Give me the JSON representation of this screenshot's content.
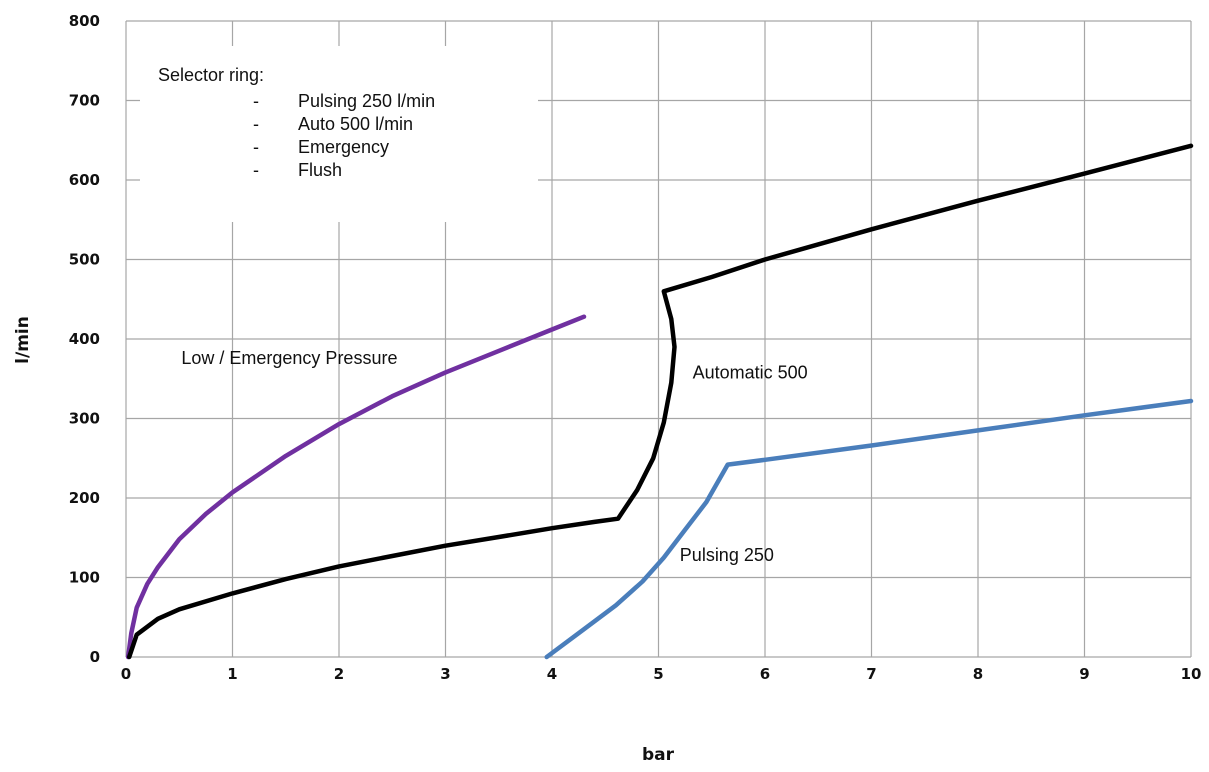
{
  "chart_data": {
    "type": "line",
    "xlabel": "bar",
    "ylabel": "l/min",
    "xlim": [
      0,
      10
    ],
    "ylim": [
      0,
      800
    ],
    "x_ticks": [
      "0",
      "1",
      "2",
      "3",
      "4",
      "5",
      "6",
      "7",
      "8",
      "9",
      "10"
    ],
    "y_ticks": [
      "0",
      "100",
      "200",
      "300",
      "400",
      "500",
      "600",
      "700",
      "800"
    ],
    "grid": true,
    "series": [
      {
        "name": "Low / Emergency Pressure",
        "color": "#7030a0",
        "points": [
          [
            0.02,
            0
          ],
          [
            0.05,
            30
          ],
          [
            0.1,
            62
          ],
          [
            0.2,
            92
          ],
          [
            0.3,
            113
          ],
          [
            0.5,
            148
          ],
          [
            0.75,
            180
          ],
          [
            1.0,
            207
          ],
          [
            1.5,
            253
          ],
          [
            2.0,
            293
          ],
          [
            2.5,
            328
          ],
          [
            3.0,
            358
          ],
          [
            3.5,
            385
          ],
          [
            4.0,
            412
          ],
          [
            4.3,
            428
          ]
        ]
      },
      {
        "name": "Automatic 500",
        "color": "#000000",
        "points": [
          [
            0.03,
            0
          ],
          [
            0.1,
            28
          ],
          [
            0.3,
            48
          ],
          [
            0.5,
            60
          ],
          [
            1.0,
            80
          ],
          [
            1.5,
            98
          ],
          [
            2.0,
            114
          ],
          [
            2.5,
            127
          ],
          [
            3.0,
            140
          ],
          [
            3.5,
            151
          ],
          [
            4.0,
            162
          ],
          [
            4.4,
            170
          ],
          [
            4.62,
            174
          ],
          [
            4.8,
            210
          ],
          [
            4.95,
            250
          ],
          [
            5.05,
            295
          ],
          [
            5.12,
            345
          ],
          [
            5.15,
            390
          ],
          [
            5.12,
            425
          ],
          [
            5.05,
            460
          ],
          [
            5.5,
            478
          ],
          [
            6.0,
            500
          ],
          [
            7.0,
            538
          ],
          [
            8.0,
            574
          ],
          [
            9.0,
            608
          ],
          [
            10.0,
            643
          ]
        ]
      },
      {
        "name": "Pulsing 250",
        "color": "#4a7ebb",
        "points": [
          [
            3.95,
            0
          ],
          [
            4.3,
            35
          ],
          [
            4.6,
            65
          ],
          [
            4.85,
            95
          ],
          [
            5.05,
            125
          ],
          [
            5.25,
            160
          ],
          [
            5.45,
            195
          ],
          [
            5.65,
            242
          ],
          [
            6.0,
            248
          ],
          [
            7.0,
            266
          ],
          [
            8.0,
            285
          ],
          [
            9.0,
            304
          ],
          [
            10.0,
            322
          ]
        ]
      }
    ],
    "annotations": [
      {
        "text": "Low / Emergency Pressure",
        "x": 0.52,
        "y": 376
      },
      {
        "text": "Automatic 500",
        "x": 5.32,
        "y": 358
      },
      {
        "text": "Pulsing 250",
        "x": 5.2,
        "y": 128
      }
    ],
    "legend_box": {
      "title": "Selector ring:",
      "bullet": "-",
      "items": [
        "Pulsing 250 l/min",
        " Auto 500 l/min",
        "Emergency",
        "Flush"
      ]
    }
  }
}
